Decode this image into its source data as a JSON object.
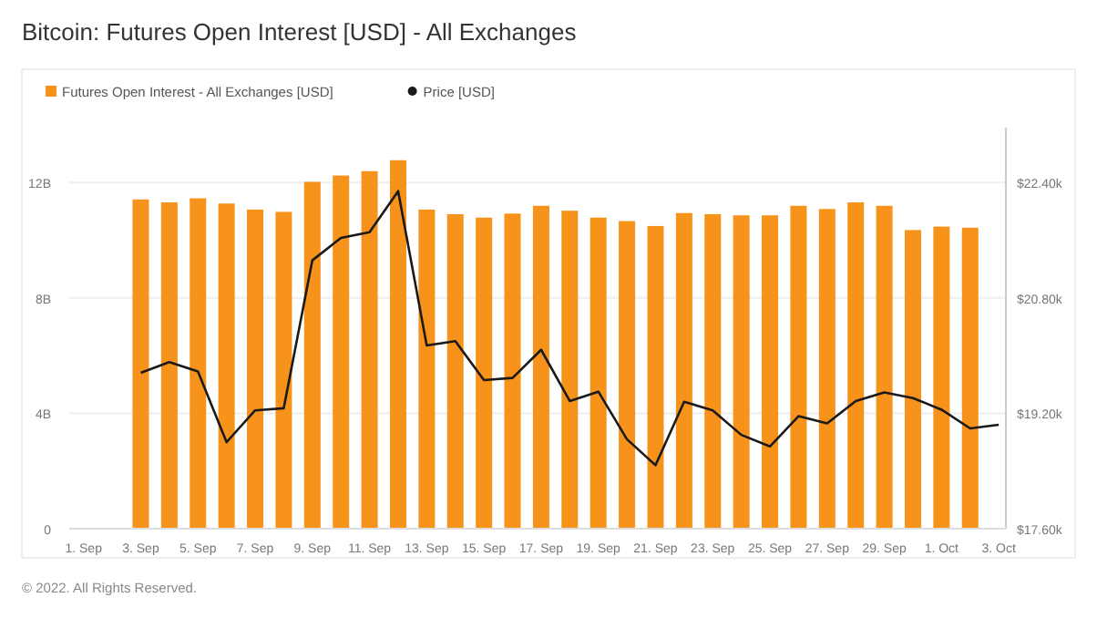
{
  "chart_data": {
    "type": "bar",
    "title": "Bitcoin: Futures Open Interest [USD] - All Exchanges",
    "x": [
      "2022-09-03",
      "2022-09-04",
      "2022-09-05",
      "2022-09-06",
      "2022-09-07",
      "2022-09-08",
      "2022-09-09",
      "2022-09-10",
      "2022-09-11",
      "2022-09-12",
      "2022-09-13",
      "2022-09-14",
      "2022-09-15",
      "2022-09-16",
      "2022-09-17",
      "2022-09-18",
      "2022-09-19",
      "2022-09-20",
      "2022-09-21",
      "2022-09-22",
      "2022-09-23",
      "2022-09-24",
      "2022-09-25",
      "2022-09-26",
      "2022-09-27",
      "2022-09-28",
      "2022-09-29",
      "2022-09-30",
      "2022-10-01",
      "2022-10-02"
    ],
    "series": [
      {
        "name": "Futures Open Interest - All Exchanges [USD]",
        "color": "#f7931a",
        "values": [
          11.41,
          11.31,
          11.45,
          11.27,
          11.06,
          10.98,
          12.02,
          12.24,
          12.39,
          12.77,
          11.06,
          10.9,
          10.78,
          10.92,
          11.19,
          11.02,
          10.78,
          10.66,
          10.49,
          10.94,
          10.9,
          10.86,
          10.86,
          11.19,
          11.08,
          11.31,
          11.19,
          10.35,
          10.47,
          10.43
        ]
      },
      {
        "name": "Price [USD]",
        "type": "line",
        "axis": "y2",
        "color": "#1a1a1a",
        "x": [
          "2022-09-03",
          "2022-09-04",
          "2022-09-05",
          "2022-09-06",
          "2022-09-07",
          "2022-09-08",
          "2022-09-09",
          "2022-09-10",
          "2022-09-11",
          "2022-09-12",
          "2022-09-13",
          "2022-09-14",
          "2022-09-15",
          "2022-09-16",
          "2022-09-17",
          "2022-09-18",
          "2022-09-19",
          "2022-09-20",
          "2022-09-21",
          "2022-09-22",
          "2022-09-23",
          "2022-09-24",
          "2022-09-25",
          "2022-09-26",
          "2022-09-27",
          "2022-09-28",
          "2022-09-29",
          "2022-09-30",
          "2022-10-01",
          "2022-10-02",
          "2022-10-03"
        ],
        "values": [
          19760,
          19910,
          19780,
          18800,
          19240,
          19270,
          21320,
          21630,
          21710,
          22280,
          20140,
          20200,
          19660,
          19690,
          20080,
          19370,
          19500,
          18840,
          18480,
          19360,
          19240,
          18900,
          18740,
          19160,
          19060,
          19370,
          19490,
          19410,
          19250,
          18990,
          19040
        ]
      }
    ],
    "xlim": [
      "2022-08-31T12:00",
      "2022-10-03T06:00"
    ],
    "xticks": [
      {
        "value": "2022-09-01",
        "label": "1. Sep"
      },
      {
        "value": "2022-09-03",
        "label": "3. Sep"
      },
      {
        "value": "2022-09-05",
        "label": "5. Sep"
      },
      {
        "value": "2022-09-07",
        "label": "7. Sep"
      },
      {
        "value": "2022-09-09",
        "label": "9. Sep"
      },
      {
        "value": "2022-09-11",
        "label": "11. Sep"
      },
      {
        "value": "2022-09-13",
        "label": "13. Sep"
      },
      {
        "value": "2022-09-15",
        "label": "15. Sep"
      },
      {
        "value": "2022-09-17",
        "label": "17. Sep"
      },
      {
        "value": "2022-09-19",
        "label": "19. Sep"
      },
      {
        "value": "2022-09-21",
        "label": "21. Sep"
      },
      {
        "value": "2022-09-23",
        "label": "23. Sep"
      },
      {
        "value": "2022-09-25",
        "label": "25. Sep"
      },
      {
        "value": "2022-09-27",
        "label": "27. Sep"
      },
      {
        "value": "2022-09-29",
        "label": "29. Sep"
      },
      {
        "value": "2022-10-01",
        "label": "1. Oct"
      },
      {
        "value": "2022-10-03",
        "label": "3. Oct"
      }
    ],
    "ylim": [
      0,
      13.9
    ],
    "yticks": [
      0,
      {
        "value": 4,
        "label": "4B"
      },
      {
        "value": 8,
        "label": "8B"
      },
      {
        "value": 12,
        "label": "12B"
      }
    ],
    "y2lim": [
      17600,
      23160
    ],
    "y2ticks": [
      {
        "value": 17600,
        "label": "$17.60k"
      },
      {
        "value": 19200,
        "label": "$19.20k"
      },
      {
        "value": 20800,
        "label": "$20.80k"
      },
      {
        "value": 22400,
        "label": "$22.40k"
      }
    ],
    "grid": "y",
    "legend": "top left",
    "marker": "none",
    "line_style": "solid",
    "annotations": [
      "© 2022. All Rights Reserved."
    ]
  }
}
